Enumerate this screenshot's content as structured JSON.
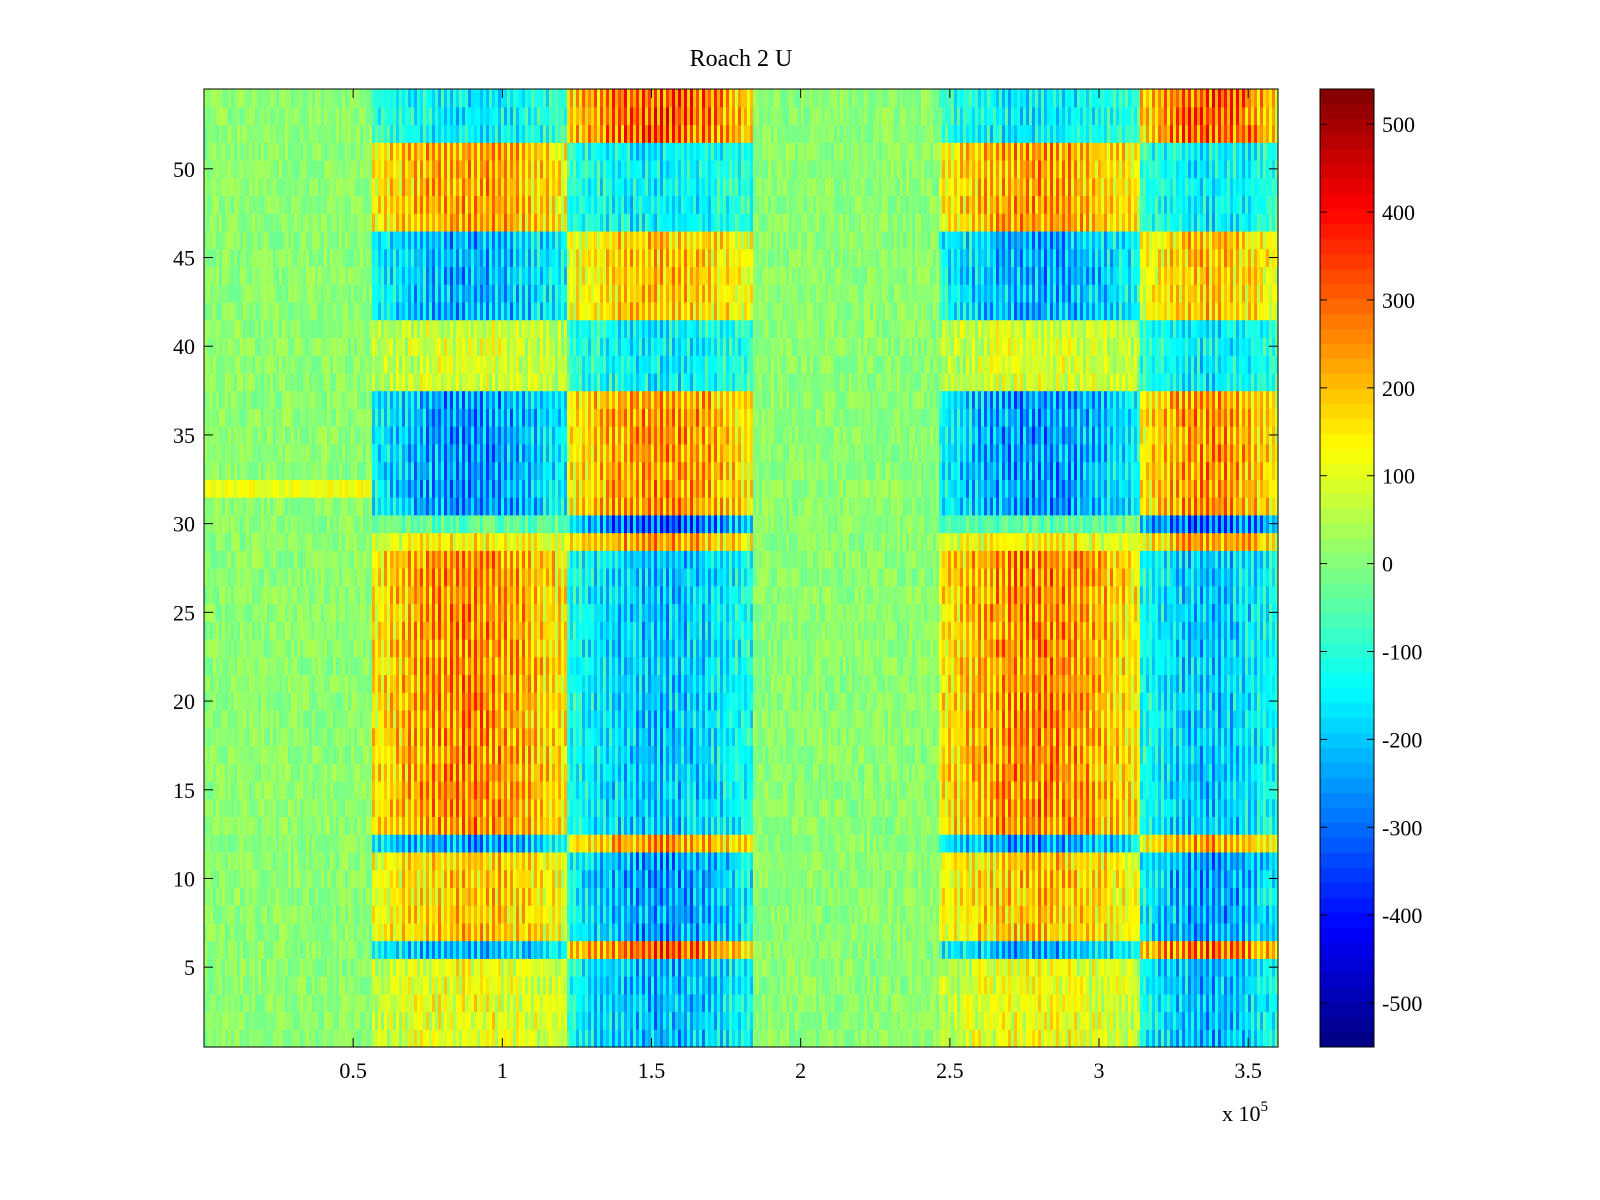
{
  "chart_data": {
    "type": "heatmap",
    "title": "Roach 2 U",
    "xlabel": "",
    "ylabel": "",
    "x_exponent_label": "x 10",
    "x_exponent_power": "5",
    "xlim": [
      0,
      3.6
    ],
    "ylim": [
      0.5,
      54.5
    ],
    "rows": 54,
    "x_ticks": [
      0.5,
      1,
      1.5,
      2,
      2.5,
      3,
      3.5
    ],
    "x_tick_labels": [
      "0.5",
      "1",
      "1.5",
      "2",
      "2.5",
      "3",
      "3.5"
    ],
    "y_ticks": [
      5,
      10,
      15,
      20,
      25,
      30,
      35,
      40,
      45,
      50
    ],
    "y_tick_labels": [
      "5",
      "10",
      "15",
      "20",
      "25",
      "30",
      "35",
      "40",
      "45",
      "50"
    ],
    "colorbar": {
      "colormap": "jet",
      "range": [
        -550,
        540
      ],
      "ticks": [
        500,
        400,
        300,
        200,
        100,
        0,
        -100,
        -200,
        -300,
        -400,
        -500
      ],
      "tick_labels": [
        "500",
        "400",
        "300",
        "200",
        "100",
        "0",
        "-100",
        "-200",
        "-300",
        "-400",
        "-500"
      ]
    },
    "active_windows": [
      [
        0.56,
        1.84
      ],
      [
        2.46,
        3.6
      ]
    ],
    "segments": [
      {
        "name": "quiet-1",
        "x_range": [
          0,
          0.56
        ],
        "typical_value": 0
      },
      {
        "name": "block-1a",
        "x_range": [
          0.56,
          1.22
        ],
        "row_bands": [
          {
            "rows": [
              1,
              5
            ],
            "value": 150
          },
          {
            "rows": [
              6,
              6
            ],
            "value": -300
          },
          {
            "rows": [
              7,
              11
            ],
            "value": 250
          },
          {
            "rows": [
              12,
              12
            ],
            "value": -320
          },
          {
            "rows": [
              13,
              28
            ],
            "value": 330
          },
          {
            "rows": [
              29,
              29
            ],
            "value": 180
          },
          {
            "rows": [
              30,
              30
            ],
            "value": -60
          },
          {
            "rows": [
              31,
              37
            ],
            "value": -330
          },
          {
            "rows": [
              38,
              41
            ],
            "value": 120
          },
          {
            "rows": [
              42,
              46
            ],
            "value": -300
          },
          {
            "rows": [
              47,
              51
            ],
            "value": 300
          },
          {
            "rows": [
              52,
              54
            ],
            "value": -200
          }
        ]
      },
      {
        "name": "block-1b",
        "x_range": [
          1.22,
          1.84
        ],
        "row_bands": [
          {
            "rows": [
              1,
              5
            ],
            "value": -280
          },
          {
            "rows": [
              6,
              6
            ],
            "value": 380
          },
          {
            "rows": [
              7,
              11
            ],
            "value": -320
          },
          {
            "rows": [
              12,
              12
            ],
            "value": 300
          },
          {
            "rows": [
              13,
              28
            ],
            "value": -260
          },
          {
            "rows": [
              29,
              29
            ],
            "value": 300
          },
          {
            "rows": [
              30,
              30
            ],
            "value": -420
          },
          {
            "rows": [
              31,
              37
            ],
            "value": 320
          },
          {
            "rows": [
              38,
              41
            ],
            "value": -200
          },
          {
            "rows": [
              42,
              46
            ],
            "value": 250
          },
          {
            "rows": [
              47,
              51
            ],
            "value": -200
          },
          {
            "rows": [
              52,
              54
            ],
            "value": 400
          }
        ]
      },
      {
        "name": "quiet-2",
        "x_range": [
          1.84,
          2.46
        ],
        "typical_value": 0
      },
      {
        "name": "block-2a",
        "x_range": [
          2.46,
          3.14
        ],
        "row_bands": [
          {
            "rows": [
              1,
              5
            ],
            "value": 150
          },
          {
            "rows": [
              6,
              6
            ],
            "value": -300
          },
          {
            "rows": [
              7,
              11
            ],
            "value": 250
          },
          {
            "rows": [
              12,
              12
            ],
            "value": -320
          },
          {
            "rows": [
              13,
              28
            ],
            "value": 330
          },
          {
            "rows": [
              29,
              29
            ],
            "value": 180
          },
          {
            "rows": [
              30,
              30
            ],
            "value": -60
          },
          {
            "rows": [
              31,
              37
            ],
            "value": -330
          },
          {
            "rows": [
              38,
              41
            ],
            "value": 120
          },
          {
            "rows": [
              42,
              46
            ],
            "value": -300
          },
          {
            "rows": [
              47,
              51
            ],
            "value": 300
          },
          {
            "rows": [
              52,
              54
            ],
            "value": -200
          }
        ]
      },
      {
        "name": "block-2b",
        "x_range": [
          3.14,
          3.6
        ],
        "row_bands": [
          {
            "rows": [
              1,
              5
            ],
            "value": -280
          },
          {
            "rows": [
              6,
              6
            ],
            "value": 380
          },
          {
            "rows": [
              7,
              11
            ],
            "value": -320
          },
          {
            "rows": [
              12,
              12
            ],
            "value": 300
          },
          {
            "rows": [
              13,
              28
            ],
            "value": -260
          },
          {
            "rows": [
              29,
              29
            ],
            "value": 300
          },
          {
            "rows": [
              30,
              30
            ],
            "value": -420
          },
          {
            "rows": [
              31,
              37
            ],
            "value": 320
          },
          {
            "rows": [
              38,
              41
            ],
            "value": -200
          },
          {
            "rows": [
              42,
              46
            ],
            "value": 250
          },
          {
            "rows": [
              47,
              51
            ],
            "value": -200
          },
          {
            "rows": [
              52,
              54
            ],
            "value": 400
          }
        ]
      }
    ],
    "annotations": [
      {
        "row": 32,
        "x_range": [
          0,
          0.56
        ],
        "value": 110
      }
    ]
  }
}
